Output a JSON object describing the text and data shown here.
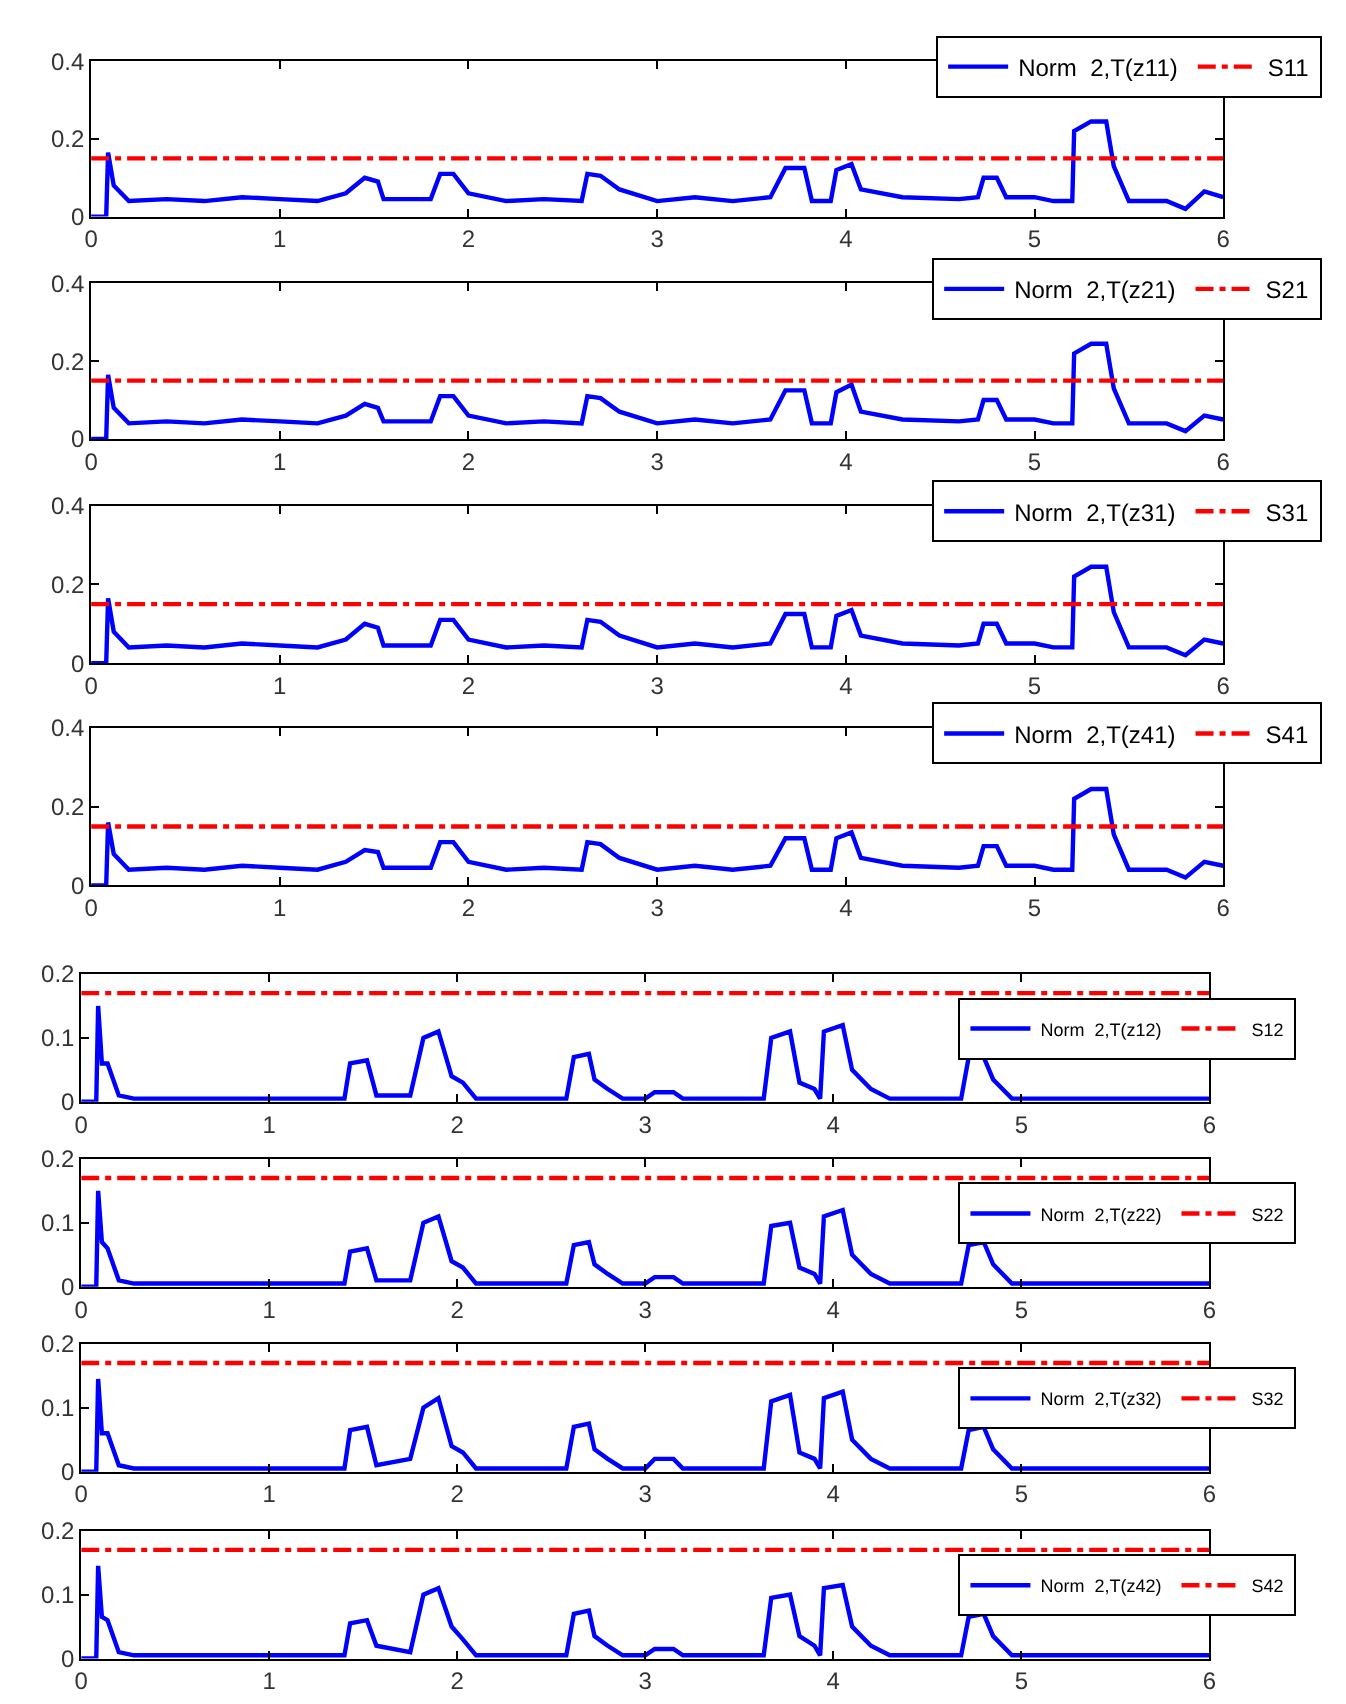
{
  "chart_data": [
    {
      "type": "line",
      "xlim": [
        0,
        6
      ],
      "ylim": [
        0,
        0.4
      ],
      "xticks": [
        0,
        1,
        2,
        3,
        4,
        5,
        6
      ],
      "yticks": [
        0,
        0.2,
        0.4
      ],
      "grid": false,
      "legend": "top right",
      "series": [
        {
          "name": "Norm  2,T(z11)",
          "color": "#0000ff",
          "line_style": "solid",
          "x": [
            0,
            0.08,
            0.09,
            0.12,
            0.2,
            0.4,
            0.6,
            0.8,
            1.0,
            1.2,
            1.35,
            1.45,
            1.52,
            1.55,
            1.8,
            1.85,
            1.92,
            2.0,
            2.2,
            2.4,
            2.6,
            2.63,
            2.7,
            2.8,
            3.0,
            3.2,
            3.4,
            3.6,
            3.68,
            3.78,
            3.82,
            3.92,
            3.95,
            4.03,
            4.08,
            4.3,
            4.6,
            4.7,
            4.73,
            4.8,
            4.85,
            5.0,
            5.1,
            5.2,
            5.21,
            5.3,
            5.38,
            5.42,
            5.5,
            5.7,
            5.8,
            5.9,
            6.0
          ],
          "values": [
            0,
            0,
            0.165,
            0.08,
            0.04,
            0.045,
            0.04,
            0.05,
            0.045,
            0.04,
            0.06,
            0.1,
            0.09,
            0.045,
            0.045,
            0.11,
            0.11,
            0.06,
            0.04,
            0.045,
            0.04,
            0.11,
            0.105,
            0.07,
            0.04,
            0.05,
            0.04,
            0.05,
            0.125,
            0.125,
            0.04,
            0.04,
            0.12,
            0.135,
            0.07,
            0.05,
            0.045,
            0.05,
            0.1,
            0.1,
            0.05,
            0.05,
            0.04,
            0.04,
            0.22,
            0.245,
            0.245,
            0.13,
            0.04,
            0.04,
            0.02,
            0.065,
            0.05
          ]
        },
        {
          "name": "S11",
          "color": "#ff0000",
          "line_style": "dashdot",
          "x": [
            0,
            6
          ],
          "values": [
            0.15,
            0.15
          ]
        }
      ]
    },
    {
      "type": "line",
      "xlim": [
        0,
        6
      ],
      "ylim": [
        0,
        0.4
      ],
      "xticks": [
        0,
        1,
        2,
        3,
        4,
        5,
        6
      ],
      "yticks": [
        0,
        0.2,
        0.4
      ],
      "grid": false,
      "legend": "top right",
      "series": [
        {
          "name": "Norm  2,T(z21)",
          "color": "#0000ff",
          "line_style": "solid",
          "x": [
            0,
            0.08,
            0.09,
            0.12,
            0.2,
            0.4,
            0.6,
            0.8,
            1.0,
            1.2,
            1.35,
            1.45,
            1.52,
            1.55,
            1.8,
            1.85,
            1.92,
            2.0,
            2.2,
            2.4,
            2.6,
            2.63,
            2.7,
            2.8,
            3.0,
            3.2,
            3.4,
            3.6,
            3.68,
            3.78,
            3.82,
            3.92,
            3.95,
            4.03,
            4.08,
            4.3,
            4.6,
            4.7,
            4.73,
            4.8,
            4.85,
            5.0,
            5.1,
            5.2,
            5.21,
            5.3,
            5.38,
            5.42,
            5.5,
            5.7,
            5.8,
            5.9,
            6.0
          ],
          "values": [
            0,
            0,
            0.165,
            0.08,
            0.04,
            0.045,
            0.04,
            0.05,
            0.045,
            0.04,
            0.06,
            0.09,
            0.08,
            0.045,
            0.045,
            0.11,
            0.11,
            0.06,
            0.04,
            0.045,
            0.04,
            0.11,
            0.105,
            0.07,
            0.04,
            0.05,
            0.04,
            0.05,
            0.125,
            0.125,
            0.04,
            0.04,
            0.12,
            0.14,
            0.07,
            0.05,
            0.045,
            0.05,
            0.1,
            0.1,
            0.05,
            0.05,
            0.04,
            0.04,
            0.22,
            0.245,
            0.245,
            0.13,
            0.04,
            0.04,
            0.02,
            0.06,
            0.05
          ]
        },
        {
          "name": "S21",
          "color": "#ff0000",
          "line_style": "dashdot",
          "x": [
            0,
            6
          ],
          "values": [
            0.15,
            0.15
          ]
        }
      ]
    },
    {
      "type": "line",
      "xlim": [
        0,
        6
      ],
      "ylim": [
        0,
        0.4
      ],
      "xticks": [
        0,
        1,
        2,
        3,
        4,
        5,
        6
      ],
      "yticks": [
        0,
        0.2,
        0.4
      ],
      "grid": false,
      "legend": "top right",
      "series": [
        {
          "name": "Norm  2,T(z31)",
          "color": "#0000ff",
          "line_style": "solid",
          "x": [
            0,
            0.08,
            0.09,
            0.12,
            0.2,
            0.4,
            0.6,
            0.8,
            1.0,
            1.2,
            1.35,
            1.45,
            1.52,
            1.55,
            1.8,
            1.85,
            1.92,
            2.0,
            2.2,
            2.4,
            2.6,
            2.63,
            2.7,
            2.8,
            3.0,
            3.2,
            3.4,
            3.6,
            3.68,
            3.78,
            3.82,
            3.92,
            3.95,
            4.03,
            4.08,
            4.3,
            4.6,
            4.7,
            4.73,
            4.8,
            4.85,
            5.0,
            5.1,
            5.2,
            5.21,
            5.3,
            5.38,
            5.42,
            5.5,
            5.7,
            5.8,
            5.9,
            6.0
          ],
          "values": [
            0,
            0,
            0.165,
            0.08,
            0.04,
            0.045,
            0.04,
            0.05,
            0.045,
            0.04,
            0.06,
            0.1,
            0.09,
            0.045,
            0.045,
            0.11,
            0.11,
            0.06,
            0.04,
            0.045,
            0.04,
            0.11,
            0.105,
            0.07,
            0.04,
            0.05,
            0.04,
            0.05,
            0.125,
            0.125,
            0.04,
            0.04,
            0.12,
            0.135,
            0.07,
            0.05,
            0.045,
            0.05,
            0.1,
            0.1,
            0.05,
            0.05,
            0.04,
            0.04,
            0.22,
            0.245,
            0.245,
            0.13,
            0.04,
            0.04,
            0.02,
            0.06,
            0.05
          ]
        },
        {
          "name": "S31",
          "color": "#ff0000",
          "line_style": "dashdot",
          "x": [
            0,
            6
          ],
          "values": [
            0.15,
            0.15
          ]
        }
      ]
    },
    {
      "type": "line",
      "xlim": [
        0,
        6
      ],
      "ylim": [
        0,
        0.4
      ],
      "xticks": [
        0,
        1,
        2,
        3,
        4,
        5,
        6
      ],
      "yticks": [
        0,
        0.2,
        0.4
      ],
      "grid": false,
      "legend": "top right",
      "series": [
        {
          "name": "Norm  2,T(z41)",
          "color": "#0000ff",
          "line_style": "solid",
          "x": [
            0,
            0.08,
            0.09,
            0.12,
            0.2,
            0.4,
            0.6,
            0.8,
            1.0,
            1.2,
            1.35,
            1.45,
            1.52,
            1.55,
            1.8,
            1.85,
            1.92,
            2.0,
            2.2,
            2.4,
            2.6,
            2.63,
            2.7,
            2.8,
            3.0,
            3.2,
            3.4,
            3.6,
            3.68,
            3.78,
            3.82,
            3.92,
            3.95,
            4.03,
            4.08,
            4.3,
            4.6,
            4.7,
            4.73,
            4.8,
            4.85,
            5.0,
            5.1,
            5.2,
            5.21,
            5.3,
            5.38,
            5.42,
            5.5,
            5.7,
            5.8,
            5.9,
            6.0
          ],
          "values": [
            0,
            0,
            0.16,
            0.08,
            0.04,
            0.045,
            0.04,
            0.05,
            0.045,
            0.04,
            0.06,
            0.09,
            0.085,
            0.045,
            0.045,
            0.11,
            0.11,
            0.06,
            0.04,
            0.045,
            0.04,
            0.11,
            0.105,
            0.07,
            0.04,
            0.05,
            0.04,
            0.05,
            0.12,
            0.12,
            0.04,
            0.04,
            0.12,
            0.135,
            0.07,
            0.05,
            0.045,
            0.05,
            0.1,
            0.1,
            0.05,
            0.05,
            0.04,
            0.04,
            0.22,
            0.245,
            0.245,
            0.13,
            0.04,
            0.04,
            0.02,
            0.06,
            0.05
          ]
        },
        {
          "name": "S41",
          "color": "#ff0000",
          "line_style": "dashdot",
          "x": [
            0,
            6
          ],
          "values": [
            0.15,
            0.15
          ]
        }
      ]
    },
    {
      "type": "line",
      "xlim": [
        0,
        6
      ],
      "ylim": [
        0,
        0.2
      ],
      "xticks": [
        0,
        1,
        2,
        3,
        4,
        5,
        6
      ],
      "yticks": [
        0,
        0.1,
        0.2
      ],
      "grid": false,
      "legend": "right",
      "series": [
        {
          "name": "Norm  2,T(z12)",
          "color": "#0000ff",
          "line_style": "solid",
          "x": [
            0,
            0.08,
            0.09,
            0.11,
            0.14,
            0.2,
            0.28,
            1.4,
            1.43,
            1.52,
            1.57,
            1.75,
            1.82,
            1.9,
            1.97,
            2.03,
            2.1,
            2.58,
            2.62,
            2.7,
            2.73,
            2.8,
            2.88,
            3.0,
            3.05,
            3.15,
            3.2,
            3.63,
            3.67,
            3.77,
            3.82,
            3.9,
            3.93,
            3.95,
            4.05,
            4.1,
            4.2,
            4.3,
            4.68,
            4.72,
            4.8,
            4.85,
            4.95,
            6.0
          ],
          "values": [
            0,
            0,
            0.15,
            0.06,
            0.06,
            0.01,
            0.005,
            0.005,
            0.06,
            0.065,
            0.01,
            0.01,
            0.1,
            0.11,
            0.04,
            0.03,
            0.005,
            0.005,
            0.07,
            0.075,
            0.035,
            0.02,
            0.005,
            0.005,
            0.015,
            0.015,
            0.005,
            0.005,
            0.1,
            0.11,
            0.03,
            0.02,
            0.005,
            0.11,
            0.12,
            0.05,
            0.02,
            0.005,
            0.005,
            0.07,
            0.07,
            0.035,
            0.005,
            0.005
          ]
        },
        {
          "name": "S12",
          "color": "#ff0000",
          "line_style": "dashdot",
          "x": [
            0,
            6
          ],
          "values": [
            0.17,
            0.17
          ]
        }
      ]
    },
    {
      "type": "line",
      "xlim": [
        0,
        6
      ],
      "ylim": [
        0,
        0.2
      ],
      "xticks": [
        0,
        1,
        2,
        3,
        4,
        5,
        6
      ],
      "yticks": [
        0,
        0.1,
        0.2
      ],
      "grid": false,
      "legend": "right",
      "series": [
        {
          "name": "Norm  2,T(z22)",
          "color": "#0000ff",
          "line_style": "solid",
          "x": [
            0,
            0.08,
            0.09,
            0.11,
            0.14,
            0.2,
            0.28,
            1.4,
            1.43,
            1.52,
            1.57,
            1.75,
            1.82,
            1.9,
            1.97,
            2.03,
            2.1,
            2.58,
            2.62,
            2.7,
            2.73,
            2.8,
            2.88,
            3.0,
            3.05,
            3.15,
            3.2,
            3.63,
            3.67,
            3.77,
            3.82,
            3.9,
            3.93,
            3.95,
            4.05,
            4.1,
            4.2,
            4.3,
            4.68,
            4.72,
            4.8,
            4.85,
            4.95,
            6.0
          ],
          "values": [
            0,
            0,
            0.15,
            0.07,
            0.06,
            0.01,
            0.005,
            0.005,
            0.055,
            0.06,
            0.01,
            0.01,
            0.1,
            0.11,
            0.04,
            0.03,
            0.005,
            0.005,
            0.065,
            0.07,
            0.035,
            0.02,
            0.005,
            0.005,
            0.015,
            0.015,
            0.005,
            0.005,
            0.095,
            0.1,
            0.03,
            0.02,
            0.005,
            0.11,
            0.12,
            0.05,
            0.02,
            0.005,
            0.005,
            0.065,
            0.07,
            0.035,
            0.005,
            0.005
          ]
        },
        {
          "name": "S22",
          "color": "#ff0000",
          "line_style": "dashdot",
          "x": [
            0,
            6
          ],
          "values": [
            0.17,
            0.17
          ]
        }
      ]
    },
    {
      "type": "line",
      "xlim": [
        0,
        6
      ],
      "ylim": [
        0,
        0.2
      ],
      "xticks": [
        0,
        1,
        2,
        3,
        4,
        5,
        6
      ],
      "yticks": [
        0,
        0.1,
        0.2
      ],
      "grid": false,
      "legend": "right",
      "series": [
        {
          "name": "Norm  2,T(z32)",
          "color": "#0000ff",
          "line_style": "solid",
          "x": [
            0,
            0.08,
            0.09,
            0.11,
            0.14,
            0.2,
            0.28,
            1.4,
            1.43,
            1.52,
            1.57,
            1.75,
            1.82,
            1.9,
            1.97,
            2.03,
            2.1,
            2.58,
            2.62,
            2.7,
            2.73,
            2.8,
            2.88,
            3.0,
            3.05,
            3.15,
            3.2,
            3.63,
            3.67,
            3.77,
            3.82,
            3.9,
            3.93,
            3.95,
            4.05,
            4.1,
            4.2,
            4.3,
            4.68,
            4.72,
            4.8,
            4.85,
            4.95,
            6.0
          ],
          "values": [
            0,
            0,
            0.145,
            0.06,
            0.06,
            0.01,
            0.005,
            0.005,
            0.065,
            0.07,
            0.01,
            0.02,
            0.1,
            0.115,
            0.04,
            0.03,
            0.005,
            0.005,
            0.07,
            0.075,
            0.035,
            0.02,
            0.005,
            0.005,
            0.02,
            0.02,
            0.005,
            0.005,
            0.11,
            0.12,
            0.03,
            0.02,
            0.005,
            0.115,
            0.125,
            0.05,
            0.02,
            0.005,
            0.005,
            0.065,
            0.07,
            0.035,
            0.005,
            0.005
          ]
        },
        {
          "name": "S32",
          "color": "#ff0000",
          "line_style": "dashdot",
          "x": [
            0,
            6
          ],
          "values": [
            0.17,
            0.17
          ]
        }
      ]
    },
    {
      "type": "line",
      "xlim": [
        0,
        6
      ],
      "ylim": [
        0,
        0.2
      ],
      "xticks": [
        0,
        1,
        2,
        3,
        4,
        5,
        6
      ],
      "yticks": [
        0,
        0.1,
        0.2
      ],
      "grid": false,
      "legend": "right",
      "series": [
        {
          "name": "Norm  2,T(z42)",
          "color": "#0000ff",
          "line_style": "solid",
          "x": [
            0,
            0.08,
            0.09,
            0.11,
            0.14,
            0.2,
            0.28,
            1.4,
            1.43,
            1.52,
            1.57,
            1.75,
            1.82,
            1.9,
            1.97,
            2.03,
            2.1,
            2.58,
            2.62,
            2.7,
            2.73,
            2.8,
            2.88,
            3.0,
            3.05,
            3.15,
            3.2,
            3.63,
            3.67,
            3.77,
            3.82,
            3.9,
            3.93,
            3.95,
            4.05,
            4.1,
            4.2,
            4.3,
            4.68,
            4.72,
            4.8,
            4.85,
            4.95,
            6.0
          ],
          "values": [
            0,
            0,
            0.145,
            0.065,
            0.06,
            0.01,
            0.005,
            0.005,
            0.055,
            0.06,
            0.02,
            0.01,
            0.1,
            0.11,
            0.05,
            0.03,
            0.005,
            0.005,
            0.07,
            0.075,
            0.035,
            0.02,
            0.005,
            0.005,
            0.015,
            0.015,
            0.005,
            0.005,
            0.095,
            0.1,
            0.035,
            0.02,
            0.005,
            0.11,
            0.115,
            0.05,
            0.02,
            0.005,
            0.005,
            0.065,
            0.07,
            0.035,
            0.005,
            0.005
          ]
        },
        {
          "name": "S42",
          "color": "#ff0000",
          "line_style": "dashdot",
          "x": [
            0,
            6
          ],
          "values": [
            0.17,
            0.17
          ]
        }
      ]
    }
  ]
}
